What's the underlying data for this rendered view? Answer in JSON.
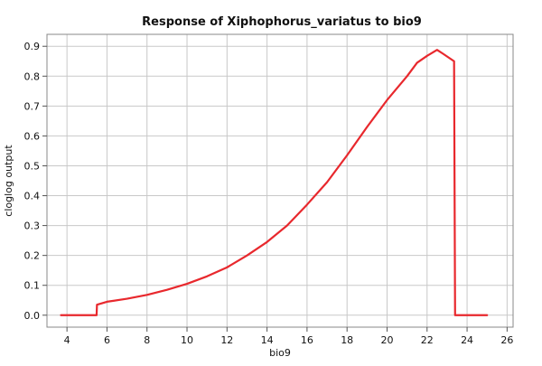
{
  "chart_data": {
    "type": "line",
    "title": "Response of Xiphophorus_variatus to bio9",
    "xlabel": "bio9",
    "ylabel": "cloglog output",
    "xlim": [
      3,
      26.3
    ],
    "ylim": [
      -0.04,
      0.94
    ],
    "x_ticks": [
      4,
      6,
      8,
      10,
      12,
      14,
      16,
      18,
      20,
      22,
      24,
      26
    ],
    "y_ticks": [
      0.0,
      0.1,
      0.2,
      0.3,
      0.4,
      0.5,
      0.6,
      0.7,
      0.8,
      0.9
    ],
    "x_tick_labels": [
      "4",
      "6",
      "8",
      "10",
      "12",
      "14",
      "16",
      "18",
      "20",
      "22",
      "24",
      "26"
    ],
    "y_tick_labels": [
      "0.0",
      "0.1",
      "0.2",
      "0.3",
      "0.4",
      "0.5",
      "0.6",
      "0.7",
      "0.8",
      "0.9"
    ],
    "grid": true,
    "series": [
      {
        "color": "#e8282d",
        "x": [
          3.7,
          5.48,
          5.5,
          6.0,
          7.0,
          8.0,
          9.0,
          10.0,
          11.0,
          12.0,
          13.0,
          14.0,
          15.0,
          16.0,
          17.0,
          18.0,
          19.0,
          20.0,
          21.0,
          21.5,
          22.0,
          22.5,
          22.8,
          23.35,
          23.4,
          24.0,
          25.0
        ],
        "y": [
          0.0,
          0.0,
          0.035,
          0.045,
          0.055,
          0.068,
          0.085,
          0.105,
          0.13,
          0.16,
          0.2,
          0.245,
          0.3,
          0.37,
          0.445,
          0.535,
          0.63,
          0.72,
          0.8,
          0.845,
          0.868,
          0.888,
          0.875,
          0.85,
          0.0,
          0.0,
          0.0
        ]
      }
    ]
  }
}
